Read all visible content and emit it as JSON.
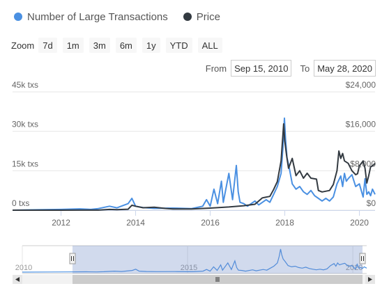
{
  "legend": {
    "items": [
      {
        "label": "Number of Large Transactions",
        "color": "#4a90e2"
      },
      {
        "label": "Price",
        "color": "#333a41"
      }
    ]
  },
  "zoom": {
    "label": "Zoom",
    "buttons": [
      "7d",
      "1m",
      "3m",
      "6m",
      "1y",
      "YTD",
      "ALL"
    ]
  },
  "range": {
    "from_label": "From",
    "from_value": "Sep 15, 2010",
    "to_label": "To",
    "to_value": "May 28, 2020"
  },
  "chart_data": {
    "type": "line",
    "x_ticks": [
      "2012",
      "2014",
      "2016",
      "2018",
      "2020"
    ],
    "navigator_ticks": [
      "2010",
      "2015",
      "2020"
    ],
    "y_left": {
      "ticks": [
        "0 txs",
        "15k txs",
        "30k txs",
        "45k txs"
      ],
      "range": [
        0,
        45000
      ]
    },
    "y_right": {
      "ticks": [
        "$0",
        "$8,000",
        "$16,000",
        "$24,000"
      ],
      "range": [
        0,
        24000
      ]
    },
    "xlim": [
      2010.7,
      2020.42
    ],
    "series": [
      {
        "name": "Number of Large Transactions",
        "axis": "left",
        "color": "#4a90e2",
        "points": [
          [
            2010.7,
            0
          ],
          [
            2011.5,
            200
          ],
          [
            2012.0,
            300
          ],
          [
            2012.5,
            500
          ],
          [
            2012.8,
            300
          ],
          [
            2013.0,
            600
          ],
          [
            2013.3,
            1500
          ],
          [
            2013.5,
            900
          ],
          [
            2013.8,
            2500
          ],
          [
            2013.9,
            4500
          ],
          [
            2014.0,
            1500
          ],
          [
            2014.2,
            1000
          ],
          [
            2014.5,
            700
          ],
          [
            2015.0,
            800
          ],
          [
            2015.5,
            600
          ],
          [
            2015.8,
            1500
          ],
          [
            2015.9,
            4000
          ],
          [
            2016.0,
            1500
          ],
          [
            2016.1,
            8000
          ],
          [
            2016.2,
            2500
          ],
          [
            2016.3,
            11000
          ],
          [
            2016.35,
            3000
          ],
          [
            2016.5,
            14000
          ],
          [
            2016.6,
            4000
          ],
          [
            2016.7,
            17000
          ],
          [
            2016.75,
            7000
          ],
          [
            2016.8,
            3000
          ],
          [
            2016.9,
            2500
          ],
          [
            2017.0,
            1500
          ],
          [
            2017.2,
            3500
          ],
          [
            2017.3,
            2000
          ],
          [
            2017.5,
            4000
          ],
          [
            2017.6,
            3000
          ],
          [
            2017.7,
            6000
          ],
          [
            2017.8,
            9000
          ],
          [
            2017.9,
            14000
          ],
          [
            2017.95,
            24000
          ],
          [
            2017.99,
            35000
          ],
          [
            2018.02,
            27000
          ],
          [
            2018.06,
            20000
          ],
          [
            2018.12,
            16000
          ],
          [
            2018.2,
            10000
          ],
          [
            2018.3,
            8000
          ],
          [
            2018.4,
            9000
          ],
          [
            2018.5,
            7000
          ],
          [
            2018.6,
            6000
          ],
          [
            2018.7,
            7500
          ],
          [
            2018.8,
            5500
          ],
          [
            2018.9,
            4500
          ],
          [
            2019.0,
            3500
          ],
          [
            2019.1,
            4500
          ],
          [
            2019.2,
            3500
          ],
          [
            2019.3,
            5000
          ],
          [
            2019.4,
            10000
          ],
          [
            2019.5,
            13000
          ],
          [
            2019.55,
            9000
          ],
          [
            2019.6,
            14000
          ],
          [
            2019.65,
            11000
          ],
          [
            2019.7,
            12000
          ],
          [
            2019.8,
            13500
          ],
          [
            2019.9,
            9000
          ],
          [
            2020.0,
            10000
          ],
          [
            2020.1,
            5000
          ],
          [
            2020.15,
            12000
          ],
          [
            2020.2,
            6000
          ],
          [
            2020.25,
            7000
          ],
          [
            2020.3,
            5500
          ],
          [
            2020.35,
            8000
          ],
          [
            2020.42,
            6000
          ]
        ]
      },
      {
        "name": "Price",
        "axis": "right",
        "color": "#333a41",
        "points": [
          [
            2010.7,
            0
          ],
          [
            2011.5,
            5
          ],
          [
            2012.0,
            5
          ],
          [
            2012.5,
            10
          ],
          [
            2013.0,
            15
          ],
          [
            2013.3,
            150
          ],
          [
            2013.5,
            100
          ],
          [
            2013.8,
            200
          ],
          [
            2013.9,
            1000
          ],
          [
            2014.0,
            800
          ],
          [
            2014.2,
            500
          ],
          [
            2014.5,
            600
          ],
          [
            2014.8,
            350
          ],
          [
            2015.0,
            250
          ],
          [
            2015.5,
            250
          ],
          [
            2015.9,
            400
          ],
          [
            2016.0,
            430
          ],
          [
            2016.5,
            650
          ],
          [
            2016.9,
            900
          ],
          [
            2017.0,
            1000
          ],
          [
            2017.2,
            1200
          ],
          [
            2017.4,
            2500
          ],
          [
            2017.6,
            2800
          ],
          [
            2017.7,
            4200
          ],
          [
            2017.8,
            5800
          ],
          [
            2017.9,
            10000
          ],
          [
            2017.97,
            17500
          ],
          [
            2018.0,
            14000
          ],
          [
            2018.05,
            11000
          ],
          [
            2018.1,
            8500
          ],
          [
            2018.2,
            10500
          ],
          [
            2018.3,
            7000
          ],
          [
            2018.4,
            8000
          ],
          [
            2018.5,
            6500
          ],
          [
            2018.6,
            7500
          ],
          [
            2018.7,
            6500
          ],
          [
            2018.85,
            6300
          ],
          [
            2018.9,
            4000
          ],
          [
            2019.0,
            3700
          ],
          [
            2019.2,
            4000
          ],
          [
            2019.3,
            5200
          ],
          [
            2019.4,
            8000
          ],
          [
            2019.45,
            12000
          ],
          [
            2019.5,
            10500
          ],
          [
            2019.55,
            11500
          ],
          [
            2019.6,
            10000
          ],
          [
            2019.7,
            9500
          ],
          [
            2019.8,
            8000
          ],
          [
            2019.9,
            7200
          ],
          [
            2019.95,
            7400
          ],
          [
            2020.0,
            9000
          ],
          [
            2020.1,
            10000
          ],
          [
            2020.15,
            8500
          ],
          [
            2020.2,
            5500
          ],
          [
            2020.25,
            7000
          ],
          [
            2020.3,
            8800
          ],
          [
            2020.35,
            9000
          ],
          [
            2020.42,
            9500
          ]
        ]
      }
    ]
  }
}
